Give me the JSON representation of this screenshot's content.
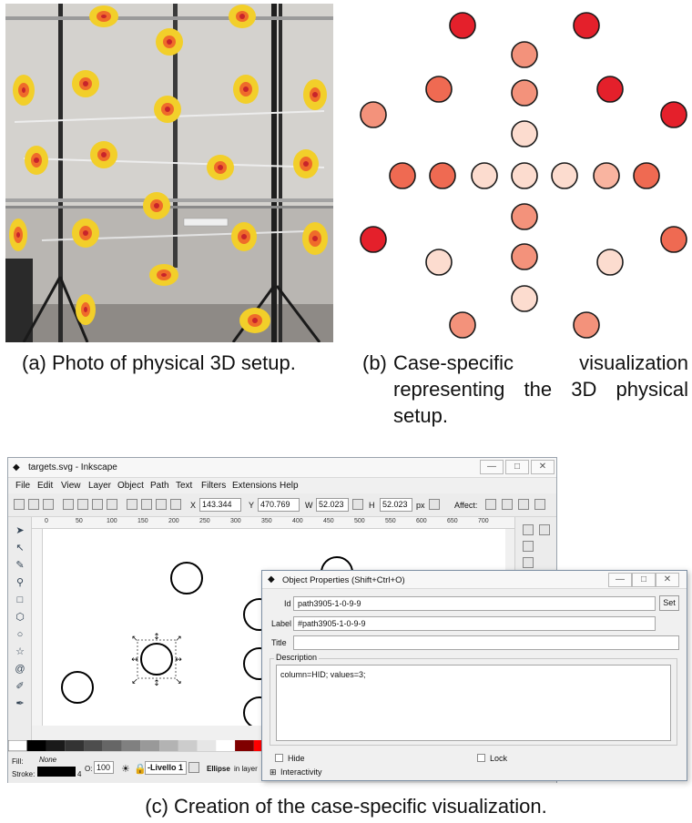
{
  "captions": {
    "a": "(a) Photo of physical 3D setup.",
    "b_label": "(b)",
    "b_text": "Case-specific visualization representing the 3D physical setup.",
    "c": "(c) Creation of the case-specific visualization."
  },
  "viz_colors": {
    "red": "#e4202b",
    "orange": "#ef6a52",
    "salmon": "#f3927b",
    "peach": "#f9b4a0",
    "pale": "#fcdccf",
    "stroke": "#1a1a1a"
  },
  "inkscape": {
    "title": "targets.svg - Inkscape",
    "window_buttons": [
      "—",
      "□",
      "✕"
    ],
    "menu": [
      "File",
      "Edit",
      "View",
      "Layer",
      "Object",
      "Path",
      "Text",
      "Filters",
      "Extensions",
      "Help"
    ],
    "toolbar": {
      "x_label": "X",
      "x_value": "143.344",
      "y_label": "Y",
      "y_value": "470.769",
      "w_label": "W",
      "w_value": "52.023",
      "h_label": "H",
      "h_value": "52.023",
      "unit": "px",
      "affect_label": "Affect:"
    },
    "ruler_ticks": [
      "0",
      "50",
      "100",
      "150",
      "200",
      "250",
      "300",
      "350",
      "400",
      "450",
      "500",
      "550",
      "600",
      "650",
      "700"
    ],
    "status": {
      "fill_label": "Fill:",
      "fill_value": "None",
      "stroke_label": "Stroke:",
      "stroke_width": "4",
      "opacity_label": "O:",
      "opacity_value": "100",
      "layer": "-Livello 1",
      "message_bold": "Ellipse",
      "message_rest": "in layer"
    },
    "palette": [
      "#000000",
      "#1a1a1a",
      "#333333",
      "#4d4d4d",
      "#666666",
      "#808080",
      "#999999",
      "#b3b3b3",
      "#cccccc",
      "#e6e6e6",
      "#ffffff",
      "#800000",
      "#ff0000",
      "#ff6600",
      "#ffcc00",
      "#ffff00",
      "#99cc00",
      "#00cc00",
      "#00cc99",
      "#00cccc",
      "#0099ff",
      "#0000ff",
      "#6600cc",
      "#cc00cc",
      "#ff0099",
      "#ff99cc",
      "#996633",
      "#663300"
    ]
  },
  "object_properties": {
    "title": "Object Properties (Shift+Ctrl+O)",
    "window_buttons": [
      "—",
      "□",
      "✕"
    ],
    "id_label": "Id",
    "id_value": "path3905-1-0-9-9",
    "set_button": "Set",
    "label_label": "Label",
    "label_value": "#path3905-1-0-9-9",
    "title_label": "Title",
    "title_value": "",
    "description_label": "Description",
    "description_value": "column=HID; values=3;",
    "hide_label": "Hide",
    "lock_label": "Lock",
    "interactivity_label": "Interactivity"
  }
}
